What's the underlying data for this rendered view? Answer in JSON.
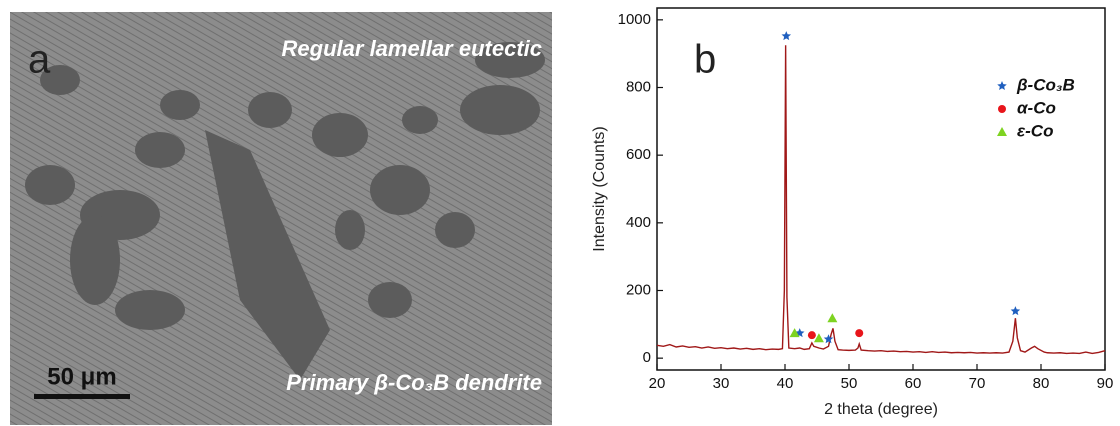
{
  "panel_a": {
    "label": "a",
    "top_text": "Regular lamellar eutectic",
    "bottom_text": "Primary β-Co₃B dendrite",
    "scale_bar": "50 μm"
  },
  "chart_data": {
    "type": "line",
    "panel_label": "b",
    "xlabel": "2 theta (degree)",
    "ylabel": "Intensity (Counts)",
    "xlim": [
      20,
      90
    ],
    "xticks": [
      20,
      30,
      40,
      50,
      60,
      70,
      80,
      90
    ],
    "ylim": [
      -35,
      1035
    ],
    "yticks": [
      0,
      200,
      400,
      600,
      800,
      1000
    ],
    "x": [
      20,
      21,
      22,
      23,
      24,
      25,
      26,
      27,
      28,
      29,
      30,
      31,
      32,
      33,
      34,
      35,
      36,
      37,
      38,
      39,
      39.6,
      39.9,
      40.1,
      40.3,
      40.6,
      41.5,
      42.3,
      43,
      43.8,
      44.2,
      44.5,
      45.3,
      46,
      46.8,
      47.2,
      47.5,
      47.8,
      48.3,
      49,
      50,
      51,
      51.4,
      51.6,
      51.9,
      53,
      54,
      55,
      56,
      57,
      58,
      59,
      60,
      61,
      62,
      63,
      64,
      65,
      66,
      67,
      68,
      69,
      70,
      71,
      72,
      73,
      74,
      75,
      75.6,
      76,
      76.3,
      76.8,
      77.5,
      78.5,
      79,
      79.5,
      80.5,
      81,
      82,
      83,
      84,
      85,
      86,
      87,
      88,
      89,
      90
    ],
    "series": [
      {
        "color": "#a01818",
        "values": [
          38,
          35,
          40,
          33,
          36,
          32,
          34,
          30,
          33,
          29,
          31,
          28,
          30,
          27,
          29,
          26,
          28,
          25,
          27,
          26,
          28,
          200,
          925,
          180,
          30,
          28,
          30,
          26,
          28,
          45,
          35,
          30,
          27,
          35,
          70,
          88,
          50,
          25,
          24,
          23,
          24,
          30,
          42,
          24,
          22,
          21,
          22,
          20,
          21,
          19,
          20,
          18,
          19,
          17,
          19,
          17,
          18,
          16,
          17,
          16,
          17,
          15,
          16,
          15,
          16,
          15,
          18,
          50,
          118,
          60,
          22,
          18,
          30,
          35,
          28,
          18,
          16,
          15,
          16,
          14,
          15,
          14,
          18,
          14,
          17,
          22
        ]
      }
    ],
    "markers": [
      {
        "name": "β-Co₃B",
        "color": "#1f5fbf",
        "marker": "star",
        "x": [
          40.2,
          42.3,
          46.8,
          76
        ],
        "values": [
          952,
          74,
          56,
          139
        ]
      },
      {
        "name": "α-Co",
        "color": "#e8151b",
        "marker": "circle",
        "x": [
          44.2,
          51.6
        ],
        "values": [
          68,
          74
        ]
      },
      {
        "name": "ε-Co",
        "color": "#7ed321",
        "marker": "triangle",
        "x": [
          41.5,
          45.3,
          47.4
        ],
        "values": [
          74,
          59,
          118
        ]
      }
    ]
  }
}
